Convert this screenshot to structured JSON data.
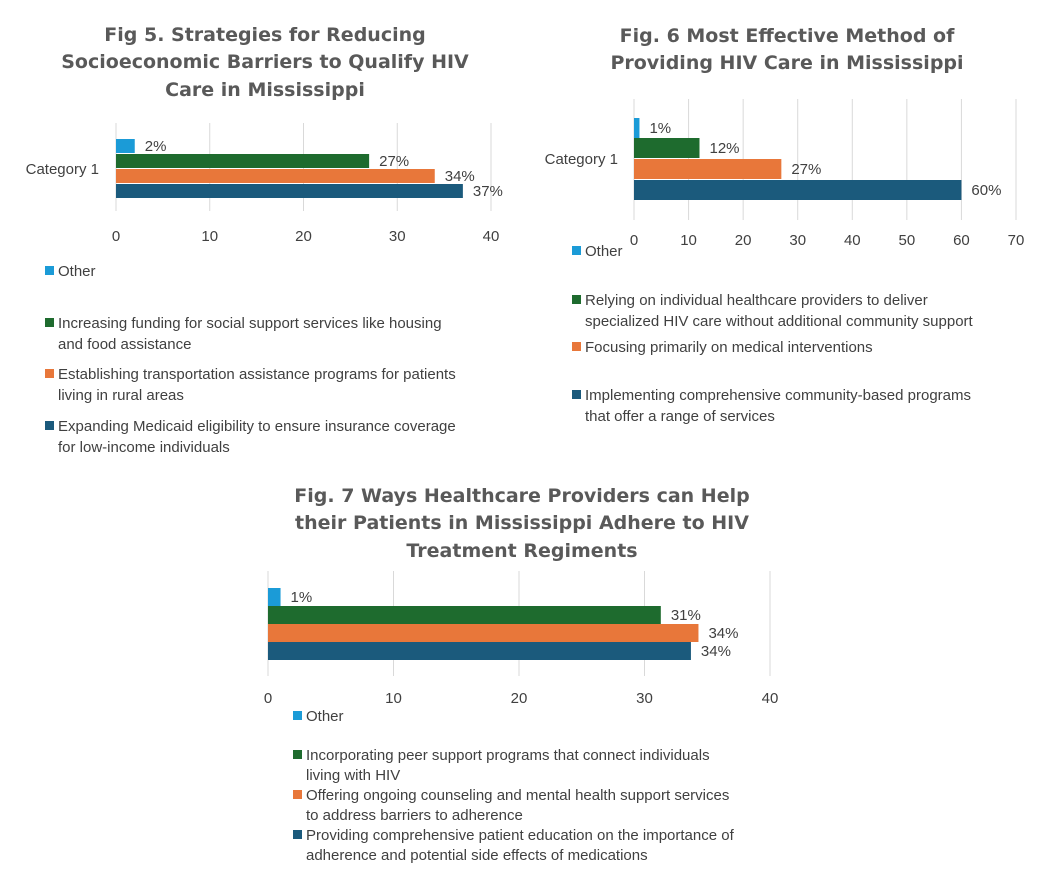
{
  "palette": {
    "other": "#1b9bd7",
    "green": "#1e6b2e",
    "orange": "#e8773a",
    "navy": "#1b5a7c"
  },
  "chart_data": [
    {
      "type": "bar",
      "orientation": "horizontal",
      "title_lines": [
        "Fig 5. Strategies for Reducing",
        "Socioeconomic Barriers to Qualify HIV",
        "Care in Mississippi"
      ],
      "categories": [
        "Category 1"
      ],
      "xlim": [
        0,
        40
      ],
      "xticks": [
        0,
        10,
        20,
        30,
        40
      ],
      "grid": true,
      "series": [
        {
          "name": "Other",
          "name_lines": [
            "Other"
          ],
          "values": [
            2
          ],
          "label": "2%",
          "color": "#1b9bd7"
        },
        {
          "name": "Increasing funding for social support services like housing and food assistance",
          "name_lines": [
            "Increasing funding for social support services like housing",
            "and food assistance"
          ],
          "values": [
            27
          ],
          "label": "27%",
          "color": "#1e6b2e"
        },
        {
          "name": "Establishing transportation assistance programs for patients living in rural areas",
          "name_lines": [
            "Establishing transportation assistance programs for patients",
            "living in rural areas"
          ],
          "values": [
            34
          ],
          "label": "34%",
          "color": "#e8773a"
        },
        {
          "name": "Expanding Medicaid eligibility to ensure insurance coverage for low-income individuals",
          "name_lines": [
            "Expanding Medicaid eligibility to ensure insurance coverage",
            "for low-income individuals"
          ],
          "values": [
            37
          ],
          "label": "37%",
          "color": "#1b5a7c"
        }
      ]
    },
    {
      "type": "bar",
      "orientation": "horizontal",
      "title_lines": [
        "Fig. 6 Most Effective Method of",
        "Providing HIV Care in Mississippi"
      ],
      "categories": [
        "Category 1"
      ],
      "xlim": [
        0,
        70
      ],
      "xticks": [
        0,
        10,
        20,
        30,
        40,
        50,
        60,
        70
      ],
      "grid": true,
      "series": [
        {
          "name": "Other",
          "name_lines": [
            "Other"
          ],
          "values": [
            1
          ],
          "label": "1%",
          "color": "#1b9bd7"
        },
        {
          "name": "Relying on individual healthcare providers to deliver specialized HIV care without additional community support",
          "name_lines": [
            "Relying on individual healthcare providers to deliver",
            "specialized HIV care without additional community support"
          ],
          "values": [
            12
          ],
          "label": "12%",
          "color": "#1e6b2e"
        },
        {
          "name": "Focusing primarily on medical interventions",
          "name_lines": [
            "Focusing primarily on medical interventions"
          ],
          "values": [
            27
          ],
          "label": "27%",
          "color": "#e8773a"
        },
        {
          "name": "Implementing comprehensive community-based programs that offer a range of services",
          "name_lines": [
            "Implementing comprehensive community-based programs",
            "that offer a range of services"
          ],
          "values": [
            60
          ],
          "label": "60%",
          "color": "#1b5a7c"
        }
      ]
    },
    {
      "type": "bar",
      "orientation": "horizontal",
      "title_lines": [
        "Fig. 7 Ways Healthcare Providers can Help",
        "their Patients in Mississippi Adhere to HIV",
        "Treatment Regiments"
      ],
      "categories": [
        ""
      ],
      "xlim": [
        0,
        40
      ],
      "xticks": [
        0,
        10,
        20,
        30,
        40
      ],
      "grid": true,
      "series": [
        {
          "name": "Other",
          "name_lines": [
            "Other"
          ],
          "values": [
            1
          ],
          "label": "1%",
          "color": "#1b9bd7"
        },
        {
          "name": "Incorporating peer support programs that connect individuals living with HIV",
          "name_lines": [
            "Incorporating peer support programs that connect individuals",
            "living  with HIV"
          ],
          "values": [
            31.3
          ],
          "label": "31%",
          "color": "#1e6b2e"
        },
        {
          "name": "Offering ongoing counseling and mental health support services to address barriers to adherence",
          "name_lines": [
            "Offering ongoing counseling and mental health support services",
            "to address barriers to adherence"
          ],
          "values": [
            34.3
          ],
          "label": "34%",
          "color": "#e8773a"
        },
        {
          "name": "Providing comprehensive patient education on the importance of adherence and potential side effects of medications",
          "name_lines": [
            "Providing comprehensive patient education on the importance of",
            "adherence and potential side effects of medications"
          ],
          "values": [
            33.7
          ],
          "label": "34%",
          "color": "#1b5a7c"
        }
      ]
    }
  ]
}
